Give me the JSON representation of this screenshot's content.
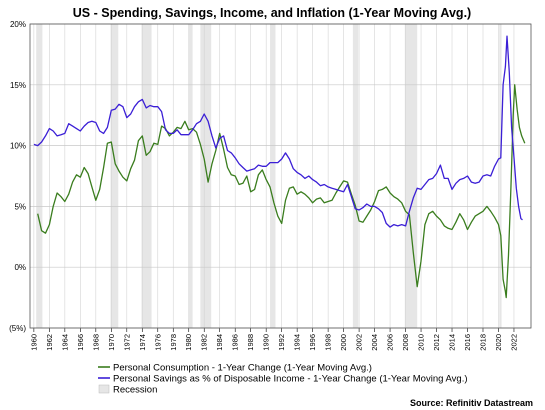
{
  "chart_data": {
    "type": "line",
    "title": "US - Spending, Savings, Income, and Inflation (1-Year Moving Avg.)",
    "source": "Source: Refinitiv Datastream",
    "xlabel": "",
    "ylabel": "",
    "xlim": [
      1959.5,
      2024.2
    ],
    "ylim": [
      -5,
      20
    ],
    "y_ticks": [
      -5,
      0,
      5,
      10,
      15,
      20
    ],
    "y_tick_labels": [
      "(5%)",
      "0%",
      "5%",
      "10%",
      "15%",
      "20%"
    ],
    "x_ticks": [
      1960,
      1962,
      1964,
      1966,
      1968,
      1970,
      1972,
      1974,
      1976,
      1978,
      1980,
      1982,
      1984,
      1986,
      1988,
      1990,
      1992,
      1994,
      1996,
      1998,
      2000,
      2002,
      2004,
      2006,
      2008,
      2010,
      2012,
      2014,
      2016,
      2018,
      2020,
      2022
    ],
    "x_tick_labels": [
      "1960",
      "1962",
      "1964",
      "1966",
      "1968",
      "1970",
      "1972",
      "1974",
      "1976",
      "1978",
      "1980",
      "1982",
      "1984",
      "1986",
      "1988",
      "1990",
      "1992",
      "1994",
      "1996",
      "1998",
      "2000",
      "2002",
      "2004",
      "2006",
      "2008",
      "2010",
      "2012",
      "2014",
      "2016",
      "2018",
      "2020",
      "2022"
    ],
    "grid": true,
    "legend_position": "bottom-left",
    "recessions": [
      {
        "start": 1960.3,
        "end": 1961.1
      },
      {
        "start": 1969.9,
        "end": 1970.9
      },
      {
        "start": 1973.9,
        "end": 1975.2
      },
      {
        "start": 1980.0,
        "end": 1980.5
      },
      {
        "start": 1981.5,
        "end": 1982.9
      },
      {
        "start": 1990.5,
        "end": 1991.2
      },
      {
        "start": 2001.2,
        "end": 2001.9
      },
      {
        "start": 2007.9,
        "end": 2009.5
      },
      {
        "start": 2020.1,
        "end": 2020.4
      }
    ],
    "series": [
      {
        "name": "Personal Consumption - 1-Year Change (1-Year Moving Avg.)",
        "color": "#3a7d1e",
        "points": [
          [
            1960.5,
            4.4
          ],
          [
            1961.0,
            3.0
          ],
          [
            1961.5,
            2.8
          ],
          [
            1962.0,
            3.5
          ],
          [
            1962.5,
            5.0
          ],
          [
            1963.0,
            6.1
          ],
          [
            1963.5,
            5.8
          ],
          [
            1964.0,
            5.4
          ],
          [
            1964.5,
            6.0
          ],
          [
            1965.0,
            7.0
          ],
          [
            1965.5,
            7.6
          ],
          [
            1966.0,
            7.4
          ],
          [
            1966.5,
            8.2
          ],
          [
            1967.0,
            7.7
          ],
          [
            1967.5,
            6.6
          ],
          [
            1968.0,
            5.5
          ],
          [
            1968.5,
            6.4
          ],
          [
            1969.0,
            8.2
          ],
          [
            1969.5,
            10.2
          ],
          [
            1970.0,
            10.3
          ],
          [
            1970.5,
            8.5
          ],
          [
            1971.0,
            7.9
          ],
          [
            1971.5,
            7.4
          ],
          [
            1972.0,
            7.1
          ],
          [
            1972.5,
            8.1
          ],
          [
            1973.0,
            8.8
          ],
          [
            1973.5,
            10.4
          ],
          [
            1974.0,
            10.8
          ],
          [
            1974.5,
            9.2
          ],
          [
            1975.0,
            9.5
          ],
          [
            1975.5,
            10.2
          ],
          [
            1976.0,
            10.1
          ],
          [
            1976.5,
            11.6
          ],
          [
            1977.0,
            11.4
          ],
          [
            1977.5,
            10.8
          ],
          [
            1978.0,
            11.1
          ],
          [
            1978.5,
            11.5
          ],
          [
            1979.0,
            11.4
          ],
          [
            1979.5,
            12.0
          ],
          [
            1980.0,
            11.3
          ],
          [
            1980.5,
            11.4
          ],
          [
            1981.0,
            11.1
          ],
          [
            1981.5,
            10.1
          ],
          [
            1982.0,
            8.9
          ],
          [
            1982.5,
            7.0
          ],
          [
            1983.0,
            8.5
          ],
          [
            1983.5,
            9.6
          ],
          [
            1984.0,
            11.0
          ],
          [
            1984.5,
            9.7
          ],
          [
            1985.0,
            8.2
          ],
          [
            1985.5,
            7.6
          ],
          [
            1986.0,
            7.5
          ],
          [
            1986.5,
            6.8
          ],
          [
            1987.0,
            6.9
          ],
          [
            1987.5,
            7.5
          ],
          [
            1988.0,
            6.2
          ],
          [
            1988.5,
            6.4
          ],
          [
            1989.0,
            7.6
          ],
          [
            1989.5,
            8.0
          ],
          [
            1990.0,
            7.2
          ],
          [
            1990.5,
            6.6
          ],
          [
            1991.0,
            5.3
          ],
          [
            1991.5,
            4.2
          ],
          [
            1992.0,
            3.6
          ],
          [
            1992.5,
            5.5
          ],
          [
            1993.0,
            6.5
          ],
          [
            1993.5,
            6.6
          ],
          [
            1994.0,
            6.0
          ],
          [
            1994.5,
            6.2
          ],
          [
            1995.0,
            6.0
          ],
          [
            1995.5,
            5.7
          ],
          [
            1996.0,
            5.3
          ],
          [
            1996.5,
            5.6
          ],
          [
            1997.0,
            5.7
          ],
          [
            1997.5,
            5.3
          ],
          [
            1998.0,
            5.4
          ],
          [
            1998.5,
            5.5
          ],
          [
            1999.0,
            6.1
          ],
          [
            1999.5,
            6.6
          ],
          [
            2000.0,
            7.1
          ],
          [
            2000.5,
            7.0
          ],
          [
            2001.0,
            6.0
          ],
          [
            2001.5,
            5.1
          ],
          [
            2002.0,
            3.8
          ],
          [
            2002.5,
            3.7
          ],
          [
            2003.0,
            4.2
          ],
          [
            2003.5,
            4.7
          ],
          [
            2004.0,
            5.4
          ],
          [
            2004.5,
            6.3
          ],
          [
            2005.0,
            6.4
          ],
          [
            2005.5,
            6.6
          ],
          [
            2006.0,
            6.1
          ],
          [
            2006.5,
            5.8
          ],
          [
            2007.0,
            5.6
          ],
          [
            2007.5,
            5.3
          ],
          [
            2008.0,
            4.6
          ],
          [
            2008.5,
            4.3
          ],
          [
            2009.0,
            1.2
          ],
          [
            2009.5,
            -1.6
          ],
          [
            2010.0,
            0.5
          ],
          [
            2010.5,
            3.5
          ],
          [
            2011.0,
            4.4
          ],
          [
            2011.5,
            4.6
          ],
          [
            2012.0,
            4.2
          ],
          [
            2012.5,
            3.9
          ],
          [
            2013.0,
            3.4
          ],
          [
            2013.5,
            3.2
          ],
          [
            2014.0,
            3.1
          ],
          [
            2014.5,
            3.7
          ],
          [
            2015.0,
            4.4
          ],
          [
            2015.5,
            3.9
          ],
          [
            2016.0,
            3.1
          ],
          [
            2016.5,
            3.7
          ],
          [
            2017.0,
            4.2
          ],
          [
            2017.5,
            4.4
          ],
          [
            2018.0,
            4.6
          ],
          [
            2018.5,
            5.0
          ],
          [
            2019.0,
            4.6
          ],
          [
            2019.5,
            4.1
          ],
          [
            2020.0,
            3.5
          ],
          [
            2020.3,
            2.6
          ],
          [
            2020.6,
            -1.0
          ],
          [
            2020.9,
            -2.0
          ],
          [
            2021.0,
            -2.5
          ],
          [
            2021.3,
            1.0
          ],
          [
            2021.6,
            6.5
          ],
          [
            2021.9,
            12.5
          ],
          [
            2022.1,
            15.0
          ],
          [
            2022.4,
            13.0
          ],
          [
            2022.7,
            11.5
          ],
          [
            2023.0,
            10.8
          ],
          [
            2023.4,
            10.2
          ]
        ]
      },
      {
        "name": "Personal Savings as % of Disposable Income - 1-Year Change (1-Year Moving Avg.)",
        "color": "#3b1fd6",
        "points": [
          [
            1960.0,
            10.1
          ],
          [
            1960.5,
            10.0
          ],
          [
            1961.0,
            10.3
          ],
          [
            1961.5,
            10.8
          ],
          [
            1962.0,
            11.4
          ],
          [
            1962.5,
            11.2
          ],
          [
            1963.0,
            10.8
          ],
          [
            1963.5,
            10.9
          ],
          [
            1964.0,
            11.0
          ],
          [
            1964.5,
            11.8
          ],
          [
            1965.0,
            11.6
          ],
          [
            1965.5,
            11.4
          ],
          [
            1966.0,
            11.2
          ],
          [
            1966.5,
            11.6
          ],
          [
            1967.0,
            11.9
          ],
          [
            1967.5,
            12.0
          ],
          [
            1968.0,
            11.9
          ],
          [
            1968.5,
            11.2
          ],
          [
            1969.0,
            11.0
          ],
          [
            1969.5,
            11.5
          ],
          [
            1970.0,
            12.9
          ],
          [
            1970.5,
            13.0
          ],
          [
            1971.0,
            13.4
          ],
          [
            1971.5,
            13.2
          ],
          [
            1972.0,
            12.3
          ],
          [
            1972.5,
            12.6
          ],
          [
            1973.0,
            13.2
          ],
          [
            1973.5,
            13.6
          ],
          [
            1974.0,
            13.8
          ],
          [
            1974.5,
            13.1
          ],
          [
            1975.0,
            13.3
          ],
          [
            1975.5,
            13.2
          ],
          [
            1976.0,
            13.2
          ],
          [
            1976.5,
            12.8
          ],
          [
            1977.0,
            11.3
          ],
          [
            1977.5,
            11.0
          ],
          [
            1978.0,
            11.0
          ],
          [
            1978.5,
            11.3
          ],
          [
            1979.0,
            10.9
          ],
          [
            1979.5,
            10.9
          ],
          [
            1980.0,
            10.9
          ],
          [
            1980.5,
            11.3
          ],
          [
            1981.0,
            11.8
          ],
          [
            1981.5,
            12.0
          ],
          [
            1982.0,
            12.6
          ],
          [
            1982.5,
            12.0
          ],
          [
            1983.0,
            10.8
          ],
          [
            1983.5,
            9.8
          ],
          [
            1984.0,
            10.6
          ],
          [
            1984.5,
            10.8
          ],
          [
            1985.0,
            9.6
          ],
          [
            1985.5,
            9.4
          ],
          [
            1986.0,
            9.0
          ],
          [
            1986.5,
            8.5
          ],
          [
            1987.0,
            8.2
          ],
          [
            1987.5,
            7.9
          ],
          [
            1988.0,
            8.0
          ],
          [
            1988.5,
            8.1
          ],
          [
            1989.0,
            8.4
          ],
          [
            1989.5,
            8.3
          ],
          [
            1990.0,
            8.3
          ],
          [
            1990.5,
            8.6
          ],
          [
            1991.0,
            8.6
          ],
          [
            1991.5,
            8.6
          ],
          [
            1992.0,
            8.9
          ],
          [
            1992.5,
            9.4
          ],
          [
            1993.0,
            8.9
          ],
          [
            1993.5,
            8.1
          ],
          [
            1994.0,
            7.8
          ],
          [
            1994.5,
            7.6
          ],
          [
            1995.0,
            7.3
          ],
          [
            1995.5,
            7.5
          ],
          [
            1996.0,
            7.2
          ],
          [
            1996.5,
            7.0
          ],
          [
            1997.0,
            6.7
          ],
          [
            1997.5,
            6.8
          ],
          [
            1998.0,
            6.6
          ],
          [
            1998.5,
            6.5
          ],
          [
            1999.0,
            6.4
          ],
          [
            1999.5,
            6.3
          ],
          [
            2000.0,
            6.2
          ],
          [
            2000.5,
            6.8
          ],
          [
            2001.0,
            5.8
          ],
          [
            2001.5,
            4.8
          ],
          [
            2002.0,
            4.7
          ],
          [
            2002.5,
            4.9
          ],
          [
            2003.0,
            5.2
          ],
          [
            2003.5,
            5.0
          ],
          [
            2004.0,
            5.0
          ],
          [
            2004.5,
            4.8
          ],
          [
            2005.0,
            4.5
          ],
          [
            2005.5,
            3.6
          ],
          [
            2006.0,
            3.3
          ],
          [
            2006.5,
            3.5
          ],
          [
            2007.0,
            3.4
          ],
          [
            2007.5,
            3.5
          ],
          [
            2008.0,
            3.4
          ],
          [
            2008.5,
            4.6
          ],
          [
            2009.0,
            5.7
          ],
          [
            2009.5,
            6.5
          ],
          [
            2010.0,
            6.4
          ],
          [
            2010.5,
            6.8
          ],
          [
            2011.0,
            7.2
          ],
          [
            2011.5,
            7.3
          ],
          [
            2012.0,
            7.7
          ],
          [
            2012.5,
            8.4
          ],
          [
            2013.0,
            7.3
          ],
          [
            2013.5,
            7.3
          ],
          [
            2014.0,
            6.4
          ],
          [
            2014.5,
            6.9
          ],
          [
            2015.0,
            7.2
          ],
          [
            2015.5,
            7.3
          ],
          [
            2016.0,
            7.5
          ],
          [
            2016.5,
            7.0
          ],
          [
            2017.0,
            6.9
          ],
          [
            2017.5,
            7.0
          ],
          [
            2018.0,
            7.5
          ],
          [
            2018.5,
            7.6
          ],
          [
            2019.0,
            7.5
          ],
          [
            2019.5,
            8.3
          ],
          [
            2020.0,
            8.9
          ],
          [
            2020.3,
            9.0
          ],
          [
            2020.6,
            15.0
          ],
          [
            2020.9,
            16.5
          ],
          [
            2021.1,
            19.0
          ],
          [
            2021.4,
            16.0
          ],
          [
            2021.7,
            11.5
          ],
          [
            2022.0,
            9.0
          ],
          [
            2022.3,
            6.5
          ],
          [
            2022.6,
            5.0
          ],
          [
            2022.9,
            4.0
          ],
          [
            2023.1,
            3.9
          ]
        ]
      }
    ],
    "legend": [
      {
        "label": "Personal Consumption - 1-Year Change (1-Year Moving Avg.)",
        "color": "#3a7d1e",
        "marker": "line"
      },
      {
        "label": "Personal Savings as % of Disposable Income - 1-Year Change (1-Year Moving Avg.)",
        "color": "#3b1fd6",
        "marker": "line"
      },
      {
        "label": "Recession",
        "color": "#e9e9e9",
        "marker": "box"
      }
    ]
  }
}
